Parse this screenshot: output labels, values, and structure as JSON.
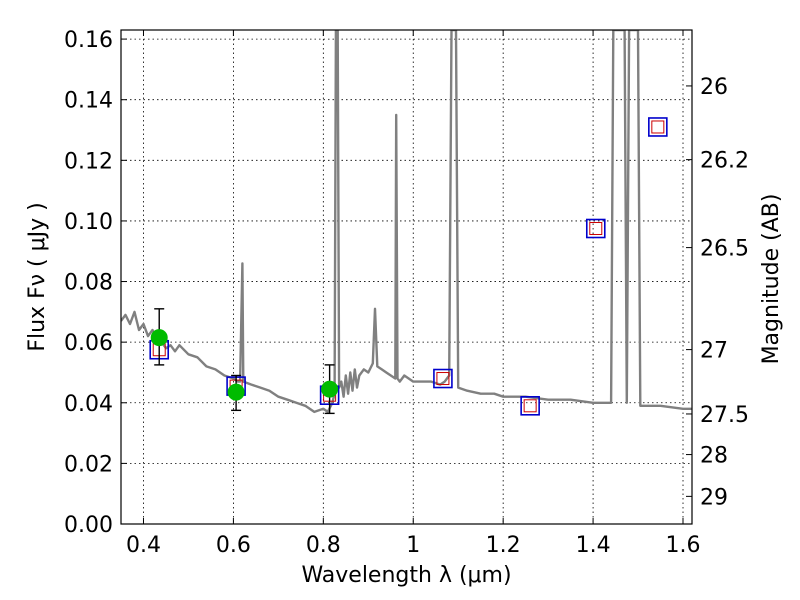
{
  "chart_data": {
    "type": "scatter",
    "title": "",
    "xlabel": "Wavelength  λ (μm)",
    "ylabel": "Flux  Fν  ( μJy )",
    "y2label": "Magnitude (AB)",
    "xlim": [
      0.35,
      1.62
    ],
    "ylim": [
      0.0,
      0.163
    ],
    "grid": true,
    "x_ticks": [
      0.4,
      0.6,
      0.8,
      1.0,
      1.2,
      1.4,
      1.6
    ],
    "x_tick_labels": [
      "0.4",
      "0.6",
      "0.8",
      "1",
      "1.2",
      "1.4",
      "1.6"
    ],
    "y_ticks": [
      0.0,
      0.02,
      0.04,
      0.06,
      0.08,
      0.1,
      0.12,
      0.14,
      0.16
    ],
    "y_tick_labels": [
      "0.00",
      "0.02",
      "0.04",
      "0.06",
      "0.08",
      "0.10",
      "0.12",
      "0.14",
      "0.16"
    ],
    "y2_ticks": [
      26,
      26.2,
      26.5,
      27,
      27.5,
      28,
      29
    ],
    "y2_tick_labels": [
      "26",
      "26.2",
      "26.5",
      "27",
      "27.5",
      "28",
      "29"
    ],
    "colors": {
      "model": "#808080",
      "observed": "#00bb00",
      "synthetic_outer": "#0000cc",
      "synthetic_inner": "#cc0000",
      "errorbar": "#000000"
    },
    "series": [
      {
        "kind": "line",
        "points": [
          [
            0.35,
            0.067
          ],
          [
            0.36,
            0.069
          ],
          [
            0.37,
            0.066
          ],
          [
            0.38,
            0.07
          ],
          [
            0.39,
            0.064
          ],
          [
            0.4,
            0.066
          ],
          [
            0.41,
            0.062
          ],
          [
            0.42,
            0.064
          ],
          [
            0.43,
            0.061
          ],
          [
            0.44,
            0.06
          ],
          [
            0.45,
            0.058
          ],
          [
            0.46,
            0.059
          ],
          [
            0.47,
            0.057
          ],
          [
            0.48,
            0.059
          ],
          [
            0.5,
            0.056
          ],
          [
            0.52,
            0.055
          ],
          [
            0.54,
            0.052
          ],
          [
            0.56,
            0.051
          ],
          [
            0.58,
            0.049
          ],
          [
            0.6,
            0.048
          ],
          [
            0.61,
            0.047
          ],
          [
            0.615,
            0.047
          ],
          [
            0.62,
            0.086
          ],
          [
            0.622,
            0.047
          ],
          [
            0.64,
            0.046
          ],
          [
            0.66,
            0.045
          ],
          [
            0.68,
            0.044
          ],
          [
            0.7,
            0.042
          ],
          [
            0.72,
            0.041
          ],
          [
            0.74,
            0.04
          ],
          [
            0.76,
            0.039
          ],
          [
            0.78,
            0.037
          ],
          [
            0.8,
            0.038
          ],
          [
            0.81,
            0.037
          ],
          [
            0.82,
            0.04
          ],
          [
            0.825,
            0.043
          ],
          [
            0.828,
            0.163
          ],
          [
            0.832,
            0.163
          ],
          [
            0.835,
            0.045
          ],
          [
            0.84,
            0.047
          ],
          [
            0.845,
            0.042
          ],
          [
            0.85,
            0.049
          ],
          [
            0.855,
            0.043
          ],
          [
            0.86,
            0.05
          ],
          [
            0.865,
            0.044
          ],
          [
            0.87,
            0.051
          ],
          [
            0.875,
            0.045
          ],
          [
            0.88,
            0.049
          ],
          [
            0.89,
            0.051
          ],
          [
            0.9,
            0.05
          ],
          [
            0.91,
            0.053
          ],
          [
            0.915,
            0.071
          ],
          [
            0.92,
            0.052
          ],
          [
            0.93,
            0.051
          ],
          [
            0.94,
            0.05
          ],
          [
            0.95,
            0.049
          ],
          [
            0.96,
            0.048
          ],
          [
            0.962,
            0.135
          ],
          [
            0.965,
            0.048
          ],
          [
            0.97,
            0.047
          ],
          [
            0.98,
            0.049
          ],
          [
            1.0,
            0.047
          ],
          [
            1.02,
            0.047
          ],
          [
            1.04,
            0.047
          ],
          [
            1.06,
            0.046
          ],
          [
            1.07,
            0.047
          ],
          [
            1.08,
            0.049
          ],
          [
            1.085,
            0.163
          ],
          [
            1.095,
            0.163
          ],
          [
            1.1,
            0.045
          ],
          [
            1.12,
            0.044
          ],
          [
            1.15,
            0.043
          ],
          [
            1.18,
            0.043
          ],
          [
            1.2,
            0.042
          ],
          [
            1.25,
            0.042
          ],
          [
            1.3,
            0.041
          ],
          [
            1.35,
            0.041
          ],
          [
            1.4,
            0.04
          ],
          [
            1.43,
            0.04
          ],
          [
            1.44,
            0.04
          ],
          [
            1.445,
            0.163
          ],
          [
            1.47,
            0.163
          ],
          [
            1.475,
            0.04
          ],
          [
            1.48,
            0.163
          ],
          [
            1.5,
            0.163
          ],
          [
            1.505,
            0.039
          ],
          [
            1.55,
            0.039
          ],
          [
            1.6,
            0.038
          ],
          [
            1.62,
            0.038
          ]
        ]
      },
      {
        "kind": "observed",
        "points": [
          {
            "x": 0.435,
            "y": 0.0615,
            "err_lo": 0.0525,
            "err_hi": 0.071
          },
          {
            "x": 0.606,
            "y": 0.0435,
            "err_lo": 0.0375,
            "err_hi": 0.049
          },
          {
            "x": 0.814,
            "y": 0.0445,
            "err_lo": 0.0365,
            "err_hi": 0.0525
          }
        ]
      },
      {
        "kind": "synthetic",
        "points": [
          {
            "x": 0.435,
            "y": 0.0575
          },
          {
            "x": 0.606,
            "y": 0.0455
          },
          {
            "x": 0.814,
            "y": 0.0425
          },
          {
            "x": 1.066,
            "y": 0.048
          },
          {
            "x": 1.26,
            "y": 0.039
          },
          {
            "x": 1.406,
            "y": 0.0975
          },
          {
            "x": 1.544,
            "y": 0.131
          }
        ]
      }
    ]
  }
}
